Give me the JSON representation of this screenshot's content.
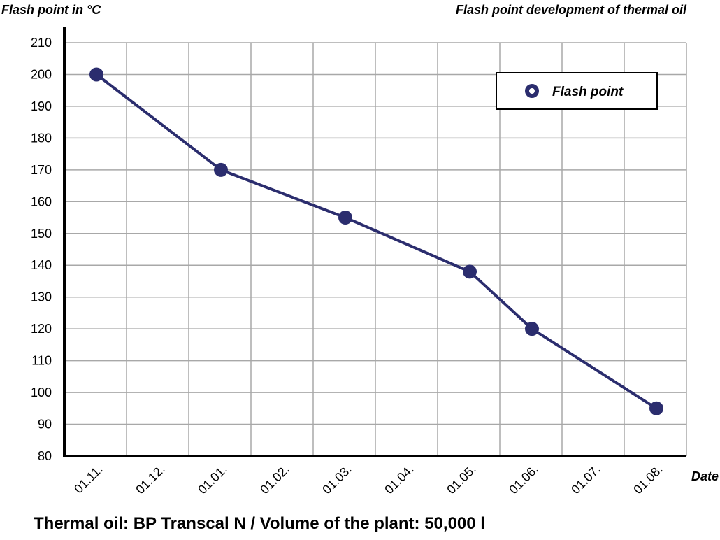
{
  "chart_data": {
    "type": "line",
    "title": "Flash point development of thermal oil",
    "xlabel": "Date",
    "ylabel": "Flash point in °C",
    "categories": [
      "01.11.",
      "01.12.",
      "01.01.",
      "01.02.",
      "01.03.",
      "01.04.",
      "01.05.",
      "01.06.",
      "01.07.",
      "01.08."
    ],
    "yticks": [
      80,
      90,
      100,
      110,
      120,
      130,
      140,
      150,
      160,
      170,
      180,
      190,
      200,
      210
    ],
    "ylim": [
      80,
      210
    ],
    "grid": true,
    "legend_position": "top-right",
    "series": [
      {
        "name": "Flash point",
        "color": "#2b2d6e",
        "points": [
          {
            "x": "01.11.",
            "y": 200
          },
          {
            "x": "01.01.",
            "y": 170
          },
          {
            "x": "01.03.",
            "y": 155
          },
          {
            "x": "01.05.",
            "y": 138
          },
          {
            "x": "01.06.",
            "y": 120
          },
          {
            "x": "01.08.",
            "y": 95
          }
        ]
      }
    ]
  },
  "footer": "Thermal oil: BP Transcal N / Volume of the plant: 50,000 l"
}
